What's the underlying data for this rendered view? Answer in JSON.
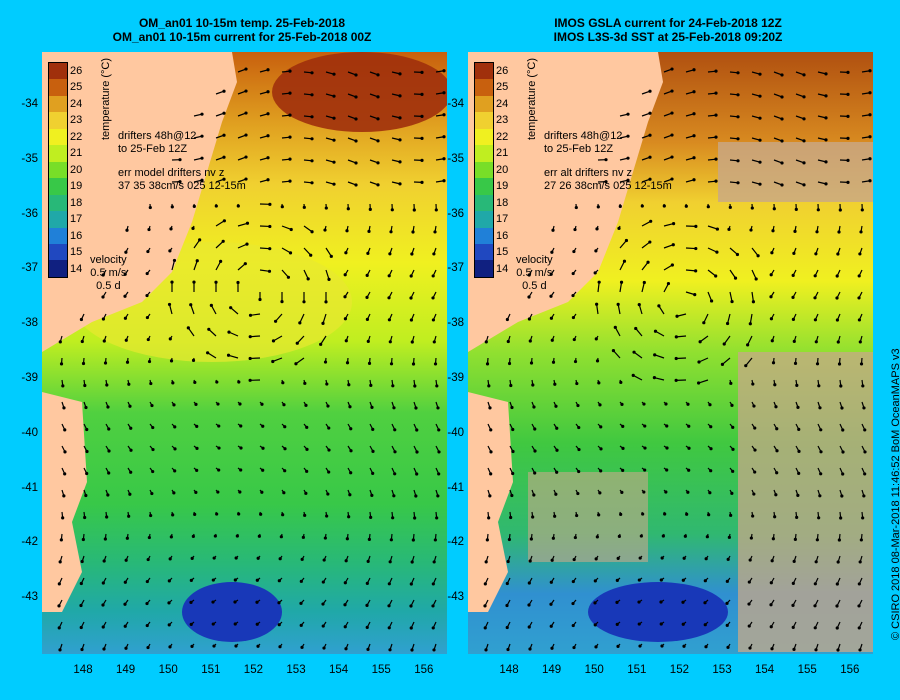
{
  "left_panel": {
    "title_line1": "OM_an01 10-15m temp. 25-Feb-2018",
    "title_line2": "OM_an01 10-15m current for 25-Feb-2018 00Z",
    "drifter_note_line1": "drifters 48h@12",
    "drifter_note_line2": "to 25-Feb 12Z",
    "err_line1": "err model drifters nv z",
    "err_line2": "37 35 38cm/s 025 12-15m",
    "velocity_label": "velocity",
    "velocity_scale": "0.5 m/s",
    "velocity_time": "0.5 d"
  },
  "right_panel": {
    "title_line1": "IMOS GSLA current for 24-Feb-2018 12Z",
    "title_line2": "IMOS L3S-3d SST at 25-Feb-2018 09:20Z",
    "drifter_note_line1": "drifters 48h@12",
    "drifter_note_line2": "to 25-Feb 12Z",
    "err_line1": "err alt drifters nv z",
    "err_line2": "27 26 38cm/s 025 12-15m",
    "velocity_label": "velocity",
    "velocity_scale": "0.5 m/s",
    "velocity_time": "0.5 d"
  },
  "colorbar": {
    "title": "temperature (°C)",
    "labels": [
      "26",
      "25",
      "24",
      "23",
      "22",
      "21",
      "20",
      "19",
      "18",
      "17",
      "16",
      "15",
      "14"
    ],
    "colors": [
      "#a0300c",
      "#c8600e",
      "#e0a020",
      "#f0d030",
      "#f0f020",
      "#c0ee20",
      "#78de28",
      "#38c848",
      "#28b878",
      "#20a8a8",
      "#2080d8",
      "#2048c0",
      "#102080"
    ]
  },
  "lat_labels": [
    "-34",
    "-35",
    "-36",
    "-37",
    "-38",
    "-39",
    "-40",
    "-41",
    "-42",
    "-43"
  ],
  "lon_labels": [
    "148",
    "149",
    "150",
    "151",
    "152",
    "153",
    "154",
    "155",
    "156"
  ],
  "credit": "© CSIRO 2018   08-Mar-2018 11:46:52 BoM OceanMAPS v3",
  "colors": {
    "background": "#00ccff",
    "land": "#ffc8a0",
    "missing": "#c8a888",
    "drifter": "#ff00ff"
  }
}
